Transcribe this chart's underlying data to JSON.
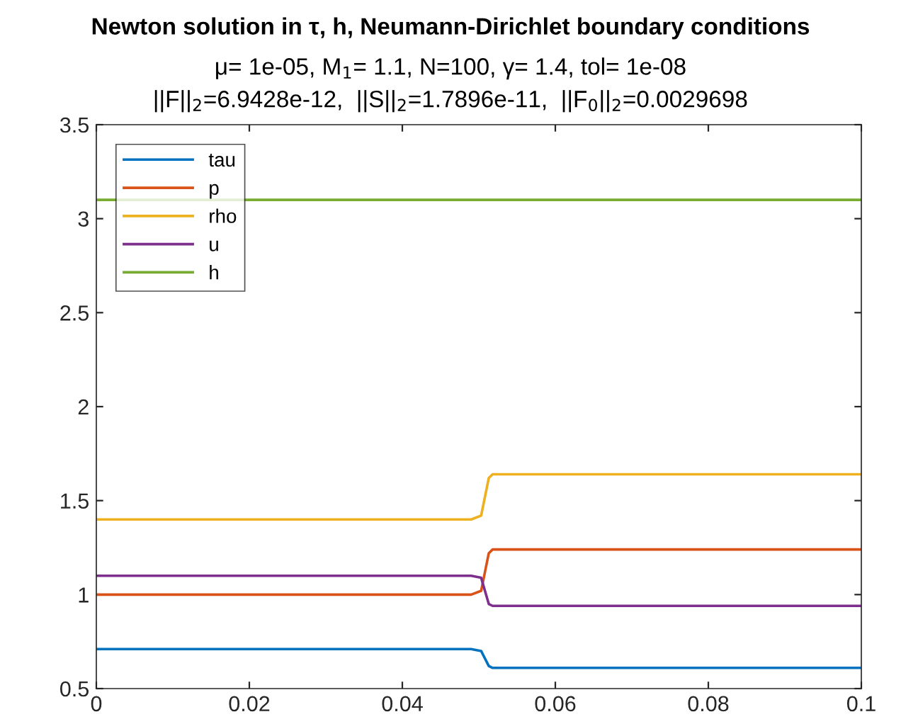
{
  "chart_data": {
    "type": "line",
    "title": "Newton solution in τ, h, Neumann-Dirichlet boundary conditions",
    "subtitle": "μ= 1e-05, M$_{1}$= 1.1, N=100, γ= 1.4, tol= 1e-08\n||F||$_{2}$=6.9428e-12,  ||S||$_{2}$=1.7896e-11,  ||F$_{0}$||$_{2}$=0.0029698",
    "x": [
      0,
      0.049,
      0.0503,
      0.0508,
      0.0513,
      0.0518,
      0.1
    ],
    "series": [
      {
        "name": "tau",
        "color": "#0072bd",
        "values": [
          0.71,
          0.71,
          0.7,
          0.66,
          0.62,
          0.61,
          0.61
        ]
      },
      {
        "name": "p",
        "color": "#d95319",
        "values": [
          1.0,
          1.0,
          1.02,
          1.12,
          1.22,
          1.24,
          1.24
        ]
      },
      {
        "name": "rho",
        "color": "#edb120",
        "values": [
          1.4,
          1.4,
          1.42,
          1.52,
          1.62,
          1.64,
          1.64
        ]
      },
      {
        "name": "u",
        "color": "#7e2f8e",
        "values": [
          1.1,
          1.1,
          1.09,
          1.02,
          0.95,
          0.94,
          0.94
        ]
      },
      {
        "name": "h",
        "color": "#77ac30",
        "values": [
          3.1,
          3.1,
          3.1,
          3.1,
          3.1,
          3.1,
          3.1
        ]
      }
    ],
    "xlim": [
      0,
      0.1
    ],
    "xticks": [
      0,
      0.02,
      0.04,
      0.06,
      0.08,
      0.1
    ],
    "ylim": [
      0.5,
      3.5
    ],
    "yticks": [
      0.5,
      1,
      1.5,
      2,
      2.5,
      3,
      3.5
    ],
    "grid": false,
    "legend": "top left"
  }
}
